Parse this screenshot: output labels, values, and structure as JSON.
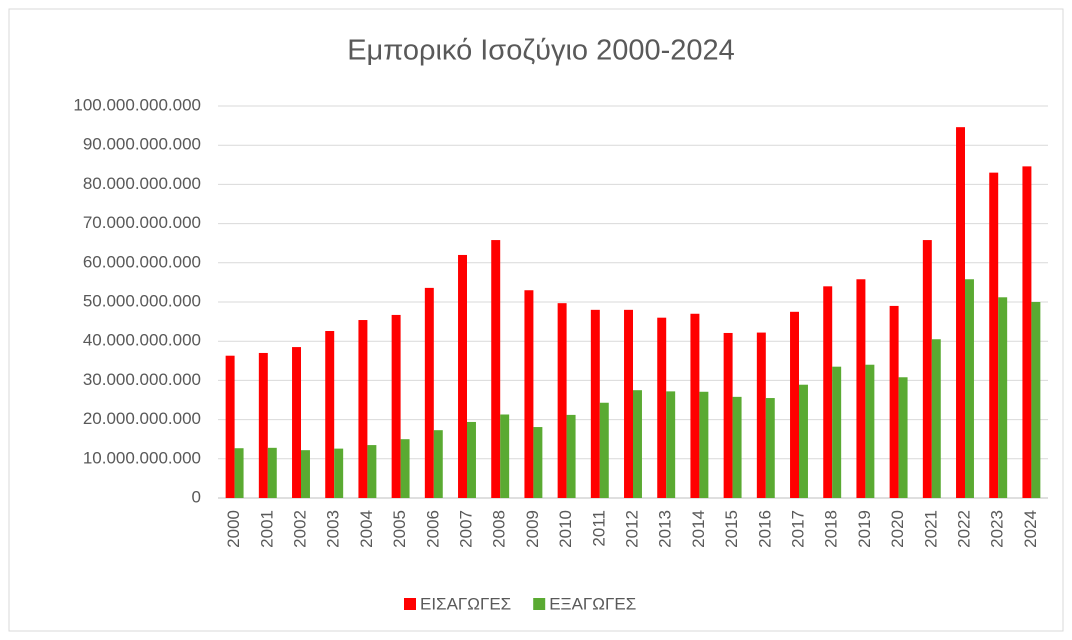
{
  "chart_data": {
    "type": "bar",
    "title": "Εμπορικό Ισοζύγιο 2000-2024",
    "categories": [
      "2000",
      "2001",
      "2002",
      "2003",
      "2004",
      "2005",
      "2006",
      "2007",
      "2008",
      "2009",
      "2010",
      "2011",
      "2012",
      "2013",
      "2014",
      "2015",
      "2016",
      "2017",
      "2018",
      "2019",
      "2020",
      "2021",
      "2022",
      "2023",
      "2024"
    ],
    "series": [
      {
        "name": "ΕΙΣΑΓΩΓΕΣ",
        "color": "#ff0000",
        "values": [
          36300000000,
          37000000000,
          38500000000,
          42600000000,
          45400000000,
          46700000000,
          53600000000,
          62000000000,
          65800000000,
          53000000000,
          49700000000,
          48000000000,
          48000000000,
          46000000000,
          47000000000,
          42100000000,
          42200000000,
          47500000000,
          54000000000,
          55800000000,
          49000000000,
          65800000000,
          94600000000,
          83000000000,
          84600000000
        ]
      },
      {
        "name": "ΕΞΑΓΩΓΕΣ",
        "color": "#5aaa32",
        "values": [
          12700000000,
          12800000000,
          12200000000,
          12600000000,
          13500000000,
          15000000000,
          17300000000,
          19400000000,
          21300000000,
          18100000000,
          21200000000,
          24300000000,
          27500000000,
          27200000000,
          27100000000,
          25800000000,
          25500000000,
          28900000000,
          33500000000,
          34000000000,
          30800000000,
          40500000000,
          55800000000,
          51200000000,
          50000000000
        ]
      }
    ],
    "ylim": [
      0,
      100000000000
    ],
    "yticks": [
      0,
      {
        "value": 10000000000,
        "label": "10.000.000.000"
      },
      {
        "value": 20000000000,
        "label": "20.000.000.000"
      },
      {
        "value": 30000000000,
        "label": "30.000.000.000"
      },
      {
        "value": 40000000000,
        "label": "40.000.000.000"
      },
      {
        "value": 50000000000,
        "label": "50.000.000.000"
      },
      {
        "value": 60000000000,
        "label": "60.000.000.000"
      },
      {
        "value": 70000000000,
        "label": "70.000.000.000"
      },
      {
        "value": 80000000000,
        "label": "80.000.000.000"
      },
      {
        "value": 90000000000,
        "label": "90.000.000.000"
      },
      {
        "value": 100000000000,
        "label": "100.000.000.000"
      }
    ],
    "grid": true,
    "legend": "bottom"
  }
}
